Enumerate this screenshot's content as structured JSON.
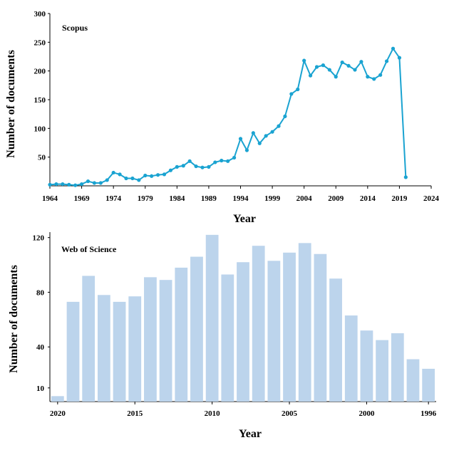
{
  "chart_data": [
    {
      "type": "line",
      "title": "",
      "label": "Scopus",
      "xlabel": "Year",
      "ylabel": "Number of documents",
      "xlim": [
        1964,
        2024
      ],
      "ylim": [
        0,
        300
      ],
      "xticks": [
        1964,
        1969,
        1974,
        1979,
        1984,
        1989,
        1994,
        1999,
        2004,
        2009,
        2014,
        2019,
        2024
      ],
      "yticks": [
        50,
        100,
        150,
        200,
        250,
        300
      ],
      "color": "#1aa3d1",
      "x": [
        1964,
        1965,
        1966,
        1967,
        1968,
        1969,
        1970,
        1971,
        1972,
        1973,
        1974,
        1975,
        1976,
        1977,
        1978,
        1979,
        1980,
        1981,
        1982,
        1983,
        1984,
        1985,
        1986,
        1987,
        1988,
        1989,
        1990,
        1991,
        1992,
        1993,
        1994,
        1995,
        1996,
        1997,
        1998,
        1999,
        2000,
        2001,
        2002,
        2003,
        2004,
        2005,
        2006,
        2007,
        2008,
        2009,
        2010,
        2011,
        2012,
        2013,
        2014,
        2015,
        2016,
        2017,
        2018,
        2019,
        2020
      ],
      "y": [
        2,
        3,
        3,
        2,
        1,
        3,
        8,
        5,
        5,
        10,
        23,
        20,
        13,
        13,
        10,
        18,
        17,
        19,
        20,
        27,
        33,
        35,
        43,
        34,
        32,
        33,
        41,
        44,
        43,
        49,
        82,
        62,
        92,
        74,
        87,
        94,
        104,
        121,
        160,
        168,
        218,
        192,
        207,
        210,
        202,
        190,
        215,
        209,
        202,
        216,
        190,
        186,
        193,
        217,
        239,
        223,
        15
      ]
    },
    {
      "type": "bar",
      "title": "",
      "label": "Web of Science",
      "xlabel": "Year",
      "ylabel": "Number of documents",
      "xlim": [
        2020,
        1996
      ],
      "ylim": [
        0,
        124
      ],
      "xticks": [
        2020,
        2015,
        2010,
        2005,
        2000,
        1996
      ],
      "yticks": [
        10,
        40,
        80,
        120
      ],
      "color": "#bcd4ec",
      "categories": [
        2020,
        2019,
        2018,
        2017,
        2016,
        2015,
        2014,
        2013,
        2012,
        2011,
        2010,
        2009,
        2008,
        2007,
        2006,
        2005,
        2004,
        2003,
        2002,
        2001,
        2000,
        1999,
        1998,
        1997,
        1996
      ],
      "values": [
        4,
        73,
        92,
        78,
        73,
        77,
        91,
        89,
        98,
        106,
        122,
        93,
        102,
        114,
        103,
        109,
        116,
        108,
        90,
        63,
        52,
        45,
        50,
        31,
        24
      ]
    }
  ]
}
